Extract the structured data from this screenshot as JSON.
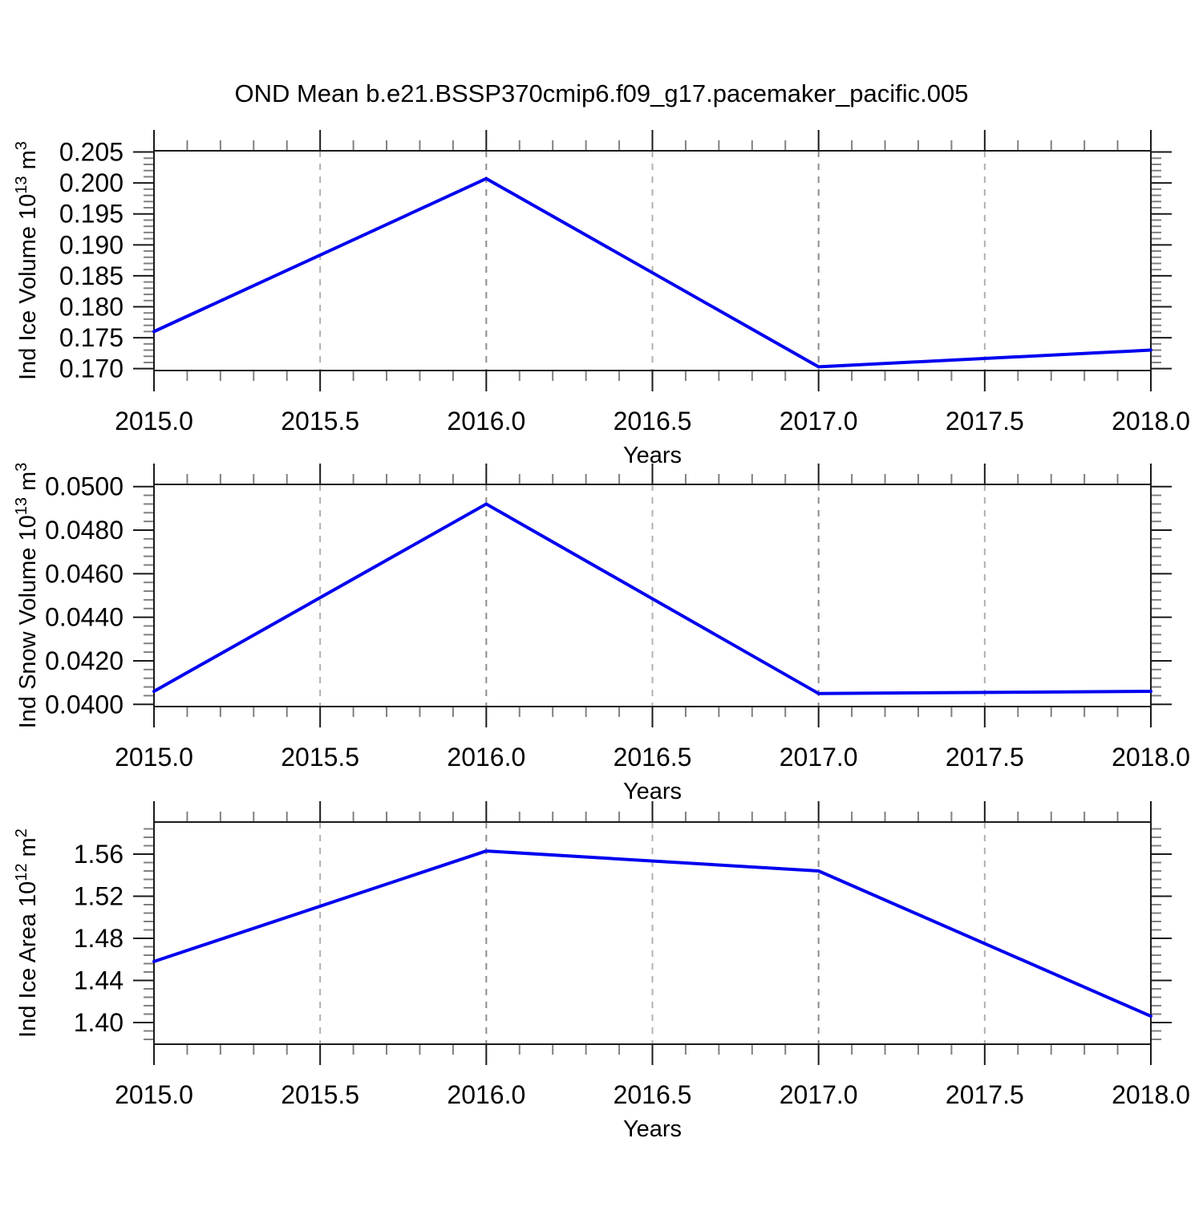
{
  "figure": {
    "title": "OND Mean b.e21.BSSP370cmip6.f09_g17.pacemaker_pacific.005"
  },
  "colors": {
    "line": "#0000f0",
    "frame": "#1a1a1a",
    "major_tick": "#1a1a1a",
    "minor_tick": "#808080",
    "grid_integer_year": "#8c8c8c",
    "grid_half_year": "#b0b0b0",
    "text": "#000000",
    "background": "#ffffff"
  },
  "chart_data": [
    {
      "type": "line",
      "id": "ice-volume",
      "ylabel": "Ind Ice Volume 10^13 m^3",
      "xlabel": "Years",
      "x": [
        2015.0,
        2016.0,
        2017.0,
        2018.0
      ],
      "values": [
        0.176,
        0.2007,
        0.1703,
        0.173
      ],
      "xlim": [
        2015.0,
        2018.0
      ],
      "ylim": [
        0.1697,
        0.2052
      ],
      "xtick_labels": [
        "2015.0",
        "2015.5",
        "2016.0",
        "2016.5",
        "2017.0",
        "2017.5",
        "2018.0"
      ],
      "ytick_labels": [
        "0.170",
        "0.175",
        "0.180",
        "0.185",
        "0.190",
        "0.195",
        "0.200",
        "0.205"
      ],
      "x_minor_step": 0.1,
      "y_minor_step": 0.001,
      "grid_x_integer_years": [
        2016.0,
        2017.0
      ],
      "grid_x_half_years": [
        2015.5,
        2016.5,
        2017.5
      ],
      "grid_style": "vertical-dashed",
      "legend": "none"
    },
    {
      "type": "line",
      "id": "snow-volume",
      "ylabel": "Ind Snow Volume 10^13 m^3",
      "xlabel": "Years",
      "x": [
        2015.0,
        2016.0,
        2017.0,
        2018.0
      ],
      "values": [
        0.0406,
        0.0492,
        0.0405,
        0.0406
      ],
      "xlim": [
        2015.0,
        2018.0
      ],
      "ylim": [
        0.0399,
        0.0501
      ],
      "xtick_labels": [
        "2015.0",
        "2015.5",
        "2016.0",
        "2016.5",
        "2017.0",
        "2017.5",
        "2018.0"
      ],
      "ytick_labels": [
        "0.0400",
        "0.0420",
        "0.0440",
        "0.0460",
        "0.0480",
        "0.0500"
      ],
      "x_minor_step": 0.1,
      "y_minor_step": 0.0004,
      "grid_x_integer_years": [
        2016.0,
        2017.0
      ],
      "grid_x_half_years": [
        2015.5,
        2016.5,
        2017.5
      ],
      "grid_style": "vertical-dashed",
      "legend": "none"
    },
    {
      "type": "line",
      "id": "ice-area",
      "ylabel": "Ind Ice Area 10^12 m^2",
      "xlabel": "Years",
      "x": [
        2015.0,
        2016.0,
        2017.0,
        2018.0
      ],
      "values": [
        1.458,
        1.563,
        1.544,
        1.406
      ],
      "xlim": [
        2015.0,
        2018.0
      ],
      "ylim": [
        1.3794,
        1.5905
      ],
      "xtick_labels": [
        "2015.0",
        "2015.5",
        "2016.0",
        "2016.5",
        "2017.0",
        "2017.5",
        "2018.0"
      ],
      "ytick_labels": [
        "1.40",
        "1.44",
        "1.48",
        "1.52",
        "1.56"
      ],
      "x_minor_step": 0.1,
      "y_minor_step": 0.008,
      "grid_x_integer_years": [
        2016.0,
        2017.0
      ],
      "grid_x_half_years": [
        2015.5,
        2016.5,
        2017.5
      ],
      "grid_style": "vertical-dashed",
      "legend": "none"
    }
  ]
}
